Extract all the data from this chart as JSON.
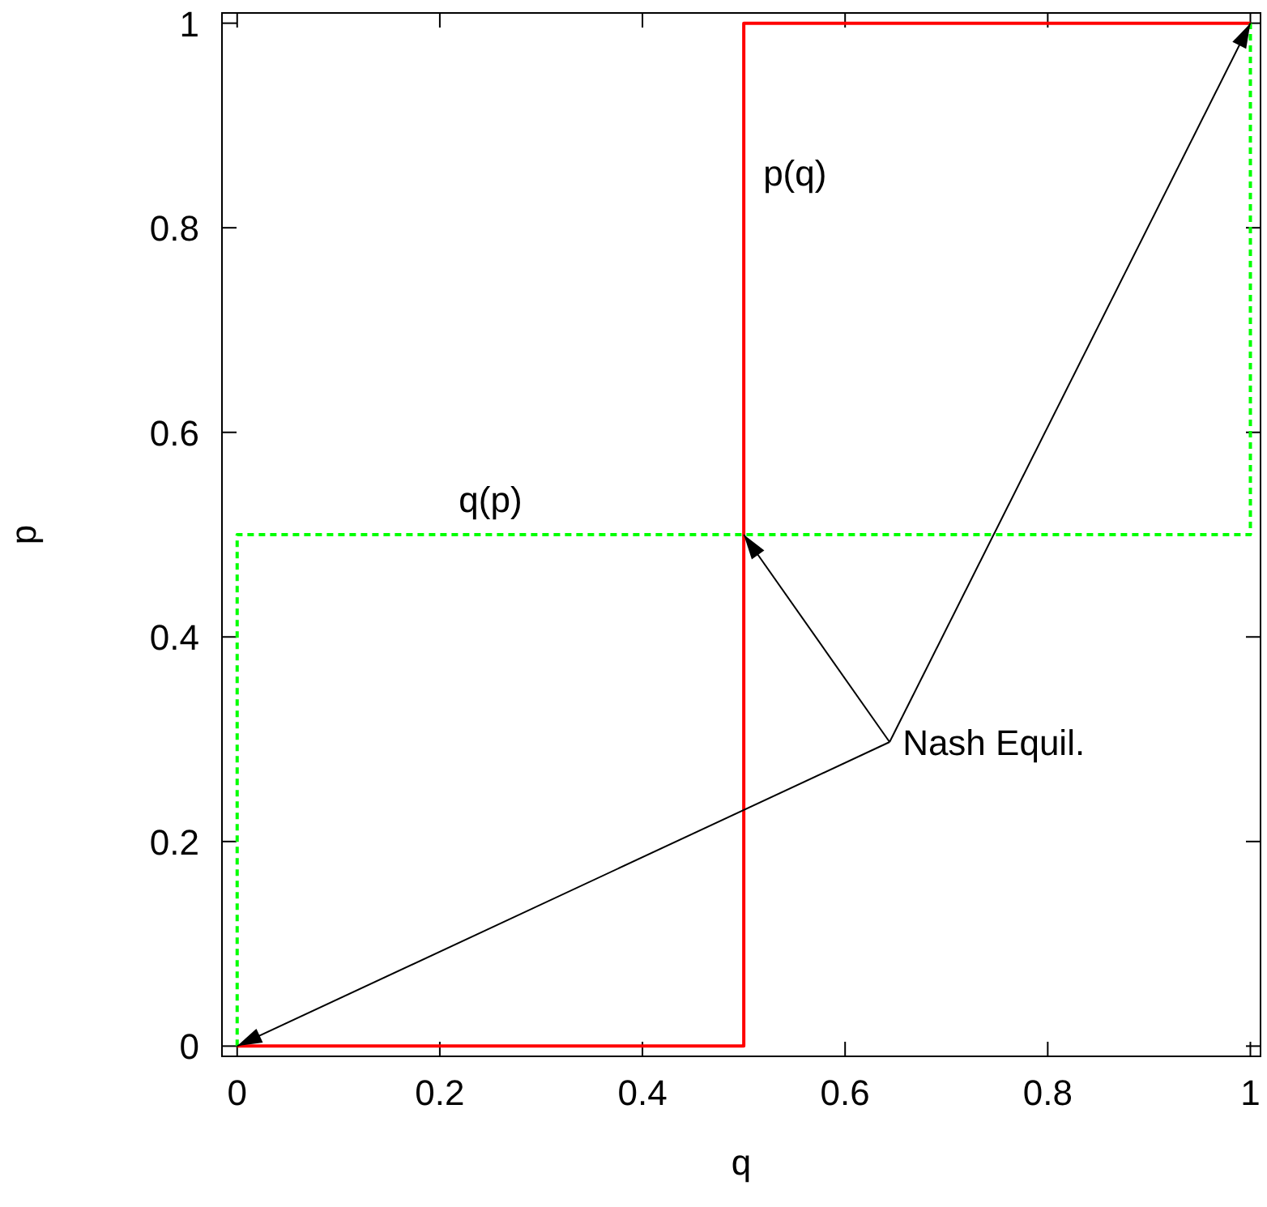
{
  "chart_data": {
    "type": "line",
    "xlabel": "q",
    "ylabel": "p",
    "xlim": [
      -0.015,
      1.01
    ],
    "ylim": [
      -0.01,
      1.01
    ],
    "xticks": [
      0,
      0.2,
      0.4,
      0.6,
      0.8,
      1
    ],
    "yticks": [
      0,
      0.2,
      0.4,
      0.6,
      0.8,
      1
    ],
    "grid": false,
    "series": [
      {
        "name": "p(q)",
        "color": "#ff0000",
        "line_style": "solid",
        "x": [
          0,
          0.5,
          0.5,
          1
        ],
        "values": [
          0,
          0,
          1,
          1
        ]
      },
      {
        "name": "q(p)",
        "color": "#00ff00",
        "line_style": "dashed",
        "x": [
          0,
          0,
          1,
          1
        ],
        "values": [
          0,
          0.5,
          0.5,
          1
        ]
      }
    ],
    "annotations": [
      {
        "text": "Nash Equil.",
        "x": 0.5,
        "y": 0.5
      }
    ]
  }
}
